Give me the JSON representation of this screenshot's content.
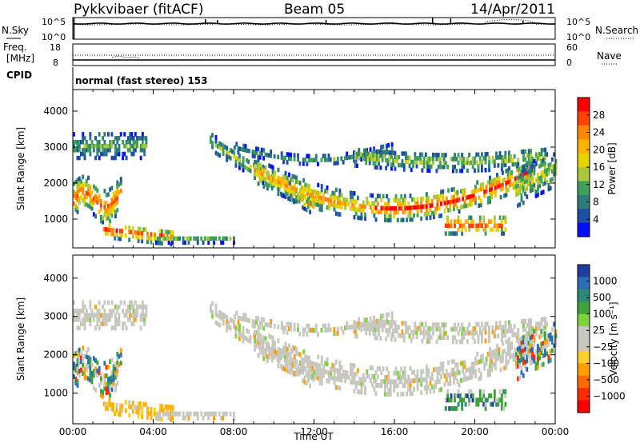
{
  "header": {
    "station": "Pykkvibaer (fitACF)",
    "beam": "Beam 05",
    "date": "14/Apr/2011"
  },
  "panels": {
    "nsky": {
      "left_label": "N.Sky",
      "left_ticks": [
        "10^5",
        "10^0"
      ],
      "right_ticks": [
        "10^5",
        "10^0"
      ],
      "right_label": "N.Search"
    },
    "freq": {
      "left_label_top": "Freq.",
      "left_label_unit": "[MHz]",
      "left_ticks": [
        "18",
        "8"
      ],
      "right_ticks": [
        "60",
        "0"
      ],
      "right_label": "Nave"
    },
    "cpid": {
      "label": "CPID",
      "text": "normal (fast stereo) 153"
    }
  },
  "chart_data": [
    {
      "type": "heatmap",
      "name": "Power",
      "ylabel": "Slant Range [km]",
      "xlabel": "",
      "xlim": [
        "00:00",
        "24:00"
      ],
      "ylim": [
        200,
        4600
      ],
      "yticks": [
        1000,
        2000,
        3000,
        4000
      ],
      "colorbar": {
        "label": "Power [dB]",
        "ticks": [
          "28",
          "24",
          "20",
          "16",
          "12",
          "8",
          "4"
        ],
        "colors": [
          "#ff0000",
          "#ff4400",
          "#ff8800",
          "#ffb300",
          "#e6d300",
          "#a8c93a",
          "#3ea05a",
          "#2f7a7a",
          "#1e4fa8",
          "#0010ff"
        ]
      }
    },
    {
      "type": "heatmap",
      "name": "Velocity",
      "ylabel": "Slant Range [km]",
      "xlabel": "Time UT",
      "xlim": [
        "00:00",
        "24:00"
      ],
      "ylim": [
        200,
        4600
      ],
      "yticks": [
        1000,
        2000,
        3000,
        4000
      ],
      "xticks": [
        "00:00",
        "04:00",
        "08:00",
        "12:00",
        "16:00",
        "20:00",
        "00:00"
      ],
      "colorbar": {
        "label": "Velocity [m s⁻¹]",
        "ticks": [
          "1000",
          "500",
          "100",
          "25",
          "−25",
          "−100",
          "−500",
          "−1000"
        ],
        "colors": [
          "#1f3f9f",
          "#2c6eb3",
          "#2e8a78",
          "#3da33a",
          "#7ed23c",
          "#c8c8c0",
          "#c8c8c0",
          "#ffd02a",
          "#ffa000",
          "#ff6a00",
          "#ff2a00",
          "#ff0000"
        ]
      }
    }
  ]
}
